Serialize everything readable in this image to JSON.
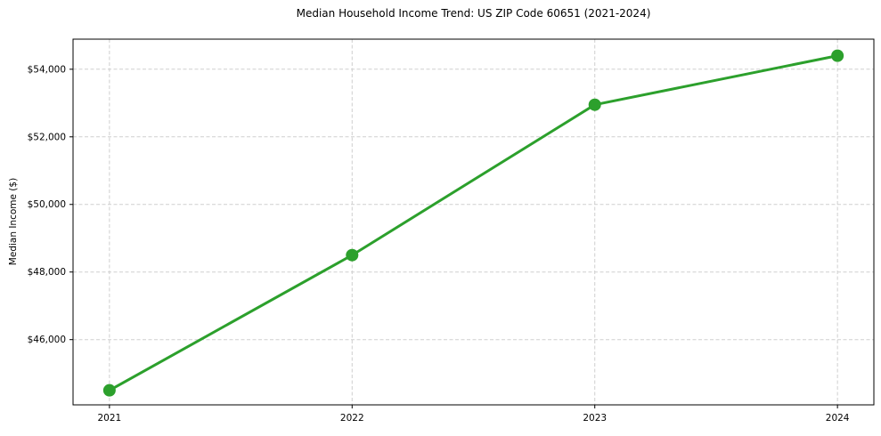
{
  "chart_data": {
    "type": "line",
    "title": "Median Household Income Trend: US ZIP Code 60651 (2021-2024)",
    "ylabel": "Median Income ($)",
    "x": [
      2021,
      2022,
      2023,
      2024
    ],
    "series": [
      {
        "name": "Median Household Income",
        "values": [
          44500,
          48500,
          52950,
          54400
        ]
      }
    ],
    "xtick_labels": [
      "2021",
      "2022",
      "2023",
      "2024"
    ],
    "ytick_values": [
      46000,
      48000,
      50000,
      52000,
      54000
    ],
    "ytick_labels": [
      "$46,000",
      "$48,000",
      "$50,000",
      "$52,000",
      "$54,000"
    ],
    "xlim": [
      2020.85,
      2024.15
    ],
    "ylim": [
      44070,
      54890
    ],
    "grid": true,
    "grid_style": "dashed",
    "legend_position": "none",
    "line_color": "#2ca02c",
    "marker": "circle",
    "marker_color": "#2ca02c",
    "grid_color": "#cfcfcf",
    "spine_color": "#000000"
  }
}
